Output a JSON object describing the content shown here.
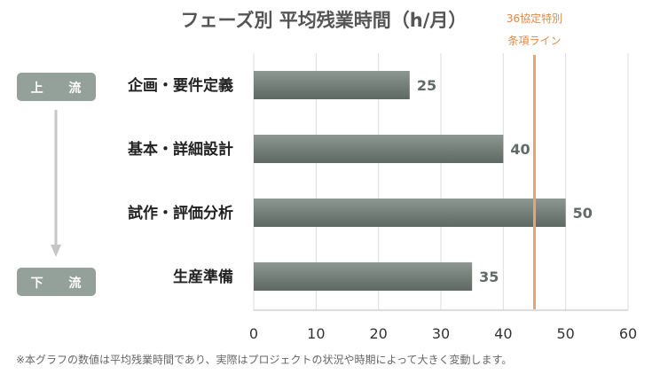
{
  "chart_data": {
    "type": "bar",
    "orientation": "horizontal",
    "title": "フェーズ別 平均残業時間（h/月）",
    "categories": [
      "企画・要件定義",
      "基本・詳細設計",
      "試作・評価分析",
      "生産準備"
    ],
    "values": [
      25,
      40,
      50,
      35
    ],
    "xlim": [
      0,
      60
    ],
    "xticks": [
      0,
      10,
      20,
      30,
      40,
      50,
      60
    ],
    "grid": true,
    "bar_color": "#7b8580",
    "reference_line": {
      "value": 45,
      "label_lines": [
        "36協定特別",
        "条項ライン"
      ],
      "color": "#e8a36f"
    },
    "phase_labels": {
      "top": "上 流",
      "bottom": "下 流"
    },
    "footnote": "※本グラフの数値は平均残業時間であり、実際はプロジェクトの状況や時期によって大きく変動します。"
  }
}
